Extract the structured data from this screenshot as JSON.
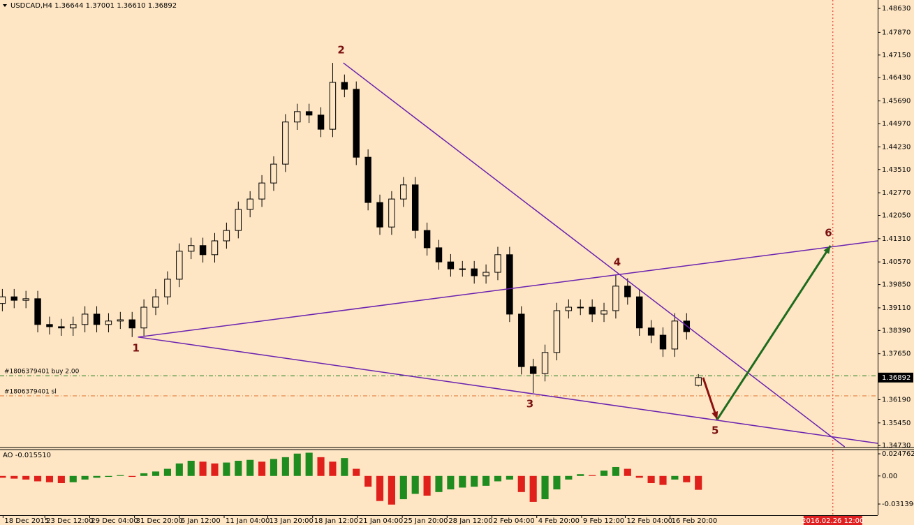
{
  "chart_data": {
    "type": "candlestick",
    "title": "USDCAD,H4  1.36644 1.37001 1.36610 1.36892",
    "candles": [
      [
        1.3925,
        1.3971,
        1.39,
        1.3946
      ],
      [
        1.3946,
        1.3971,
        1.391,
        1.3935
      ],
      [
        1.3935,
        1.3965,
        1.391,
        1.394
      ],
      [
        1.394,
        1.3965,
        1.3833,
        1.3858
      ],
      [
        1.3858,
        1.3883,
        1.3826,
        1.3851
      ],
      [
        1.3851,
        1.3876,
        1.3822,
        1.3847
      ],
      [
        1.3847,
        1.3883,
        1.3822,
        1.3858
      ],
      [
        1.3858,
        1.3916,
        1.3833,
        1.3891
      ],
      [
        1.3891,
        1.3916,
        1.3833,
        1.3858
      ],
      [
        1.3858,
        1.3894,
        1.3833,
        1.3869
      ],
      [
        1.3869,
        1.3898,
        1.3844,
        1.3873
      ],
      [
        1.3873,
        1.3898,
        1.3818,
        1.3847
      ],
      [
        1.3847,
        1.3938,
        1.3822,
        1.3913
      ],
      [
        1.3913,
        1.3971,
        1.3888,
        1.3946
      ],
      [
        1.3946,
        1.4027,
        1.3921,
        1.4002
      ],
      [
        1.4002,
        1.4116,
        1.3977,
        1.4091
      ],
      [
        1.4091,
        1.4134,
        1.4066,
        1.4109
      ],
      [
        1.4109,
        1.4134,
        1.4055,
        1.408
      ],
      [
        1.408,
        1.4149,
        1.4055,
        1.4124
      ],
      [
        1.4124,
        1.4182,
        1.4099,
        1.4157
      ],
      [
        1.4157,
        1.4249,
        1.4132,
        1.4224
      ],
      [
        1.4224,
        1.4282,
        1.4199,
        1.4257
      ],
      [
        1.4257,
        1.4333,
        1.4232,
        1.4308
      ],
      [
        1.4308,
        1.4393,
        1.4283,
        1.4368
      ],
      [
        1.4368,
        1.4527,
        1.4343,
        1.4502
      ],
      [
        1.4502,
        1.456,
        1.4477,
        1.4535
      ],
      [
        1.4535,
        1.456,
        1.4499,
        1.4524
      ],
      [
        1.4524,
        1.4549,
        1.4454,
        1.4479
      ],
      [
        1.4479,
        1.469,
        1.4454,
        1.4628
      ],
      [
        1.4628,
        1.4653,
        1.4581,
        1.4606
      ],
      [
        1.4606,
        1.4631,
        1.4365,
        1.439
      ],
      [
        1.439,
        1.4415,
        1.4221,
        1.4246
      ],
      [
        1.4246,
        1.4271,
        1.4143,
        1.4168
      ],
      [
        1.4168,
        1.4282,
        1.4143,
        1.4257
      ],
      [
        1.4257,
        1.4327,
        1.4232,
        1.4302
      ],
      [
        1.4302,
        1.4327,
        1.4132,
        1.4157
      ],
      [
        1.4157,
        1.4182,
        1.4077,
        1.4102
      ],
      [
        1.4102,
        1.4127,
        1.4032,
        1.4057
      ],
      [
        1.4057,
        1.4082,
        1.401,
        1.4035
      ],
      [
        1.4035,
        1.406,
        1.401,
        1.4035
      ],
      [
        1.4035,
        1.406,
        1.3988,
        1.4013
      ],
      [
        1.4013,
        1.4049,
        1.3988,
        1.4024
      ],
      [
        1.4024,
        1.4105,
        1.3999,
        1.408
      ],
      [
        1.408,
        1.4105,
        1.3866,
        1.3891
      ],
      [
        1.3891,
        1.3916,
        1.3699,
        1.3724
      ],
      [
        1.3724,
        1.3749,
        1.364,
        1.3702
      ],
      [
        1.3702,
        1.3794,
        1.3677,
        1.3769
      ],
      [
        1.3769,
        1.3927,
        1.3744,
        1.3902
      ],
      [
        1.3902,
        1.3938,
        1.3877,
        1.3913
      ],
      [
        1.3913,
        1.3938,
        1.3888,
        1.3913
      ],
      [
        1.3913,
        1.3938,
        1.3866,
        1.3891
      ],
      [
        1.3891,
        1.3927,
        1.3866,
        1.3902
      ],
      [
        1.3902,
        1.4015,
        1.3877,
        1.398
      ],
      [
        1.398,
        1.4005,
        1.3921,
        1.3946
      ],
      [
        1.3946,
        1.3971,
        1.3822,
        1.3847
      ],
      [
        1.3847,
        1.3872,
        1.3799,
        1.3824
      ],
      [
        1.3824,
        1.3849,
        1.3755,
        1.378
      ],
      [
        1.378,
        1.3894,
        1.3755,
        1.3869
      ],
      [
        1.3869,
        1.3894,
        1.381,
        1.3835
      ],
      [
        1.36644,
        1.37001,
        1.3661,
        1.36892
      ]
    ],
    "xlim": [
      -0.2,
      74.2
    ],
    "xticks": [
      {
        "value": 0.06,
        "label": "18 Dec 2015"
      },
      {
        "value": 3.6,
        "label": "23 Dec 12:00"
      },
      {
        "value": 7.4,
        "label": "29 Dec 04:00"
      },
      {
        "value": 11.2,
        "label": "31 Dec 20:00"
      },
      {
        "value": 15.0,
        "label": "6 Jan 12:00"
      },
      {
        "value": 18.8,
        "label": "11 Jan 04:00"
      },
      {
        "value": 22.5,
        "label": "13 Jan 20:00"
      },
      {
        "value": 26.3,
        "label": "18 Jan 12:00"
      },
      {
        "value": 30.1,
        "label": "21 Jan 04:00"
      },
      {
        "value": 33.9,
        "label": "25 Jan 20:00"
      },
      {
        "value": 37.7,
        "label": "28 Jan 12:00"
      },
      {
        "value": 41.5,
        "label": "2 Feb 04:00"
      },
      {
        "value": 45.3,
        "label": "4 Feb 20:00"
      },
      {
        "value": 49.1,
        "label": "9 Feb 12:00"
      },
      {
        "value": 52.8,
        "label": "12 Feb 04:00"
      },
      {
        "value": 56.6,
        "label": "16 Feb 20:00"
      }
    ],
    "ylim": [
      1.3469,
      1.489
    ],
    "yticks": [
      {
        "value": 1.4863,
        "label": "1.48630"
      },
      {
        "value": 1.4787,
        "label": "1.47870"
      },
      {
        "value": 1.4715,
        "label": "1.47150"
      },
      {
        "value": 1.4643,
        "label": "1.46430"
      },
      {
        "value": 1.4569,
        "label": "1.45690"
      },
      {
        "value": 1.4497,
        "label": "1.44970"
      },
      {
        "value": 1.4423,
        "label": "1.44230"
      },
      {
        "value": 1.4351,
        "label": "1.43510"
      },
      {
        "value": 1.4277,
        "label": "1.42770"
      },
      {
        "value": 1.4205,
        "label": "1.42050"
      },
      {
        "value": 1.4131,
        "label": "1.41310"
      },
      {
        "value": 1.4057,
        "label": "1.40570"
      },
      {
        "value": 1.3985,
        "label": "1.39850"
      },
      {
        "value": 1.3911,
        "label": "1.39110"
      },
      {
        "value": 1.3839,
        "label": "1.38390"
      },
      {
        "value": 1.3765,
        "label": "1.37650"
      },
      {
        "value": 1.3619,
        "label": "1.36190"
      },
      {
        "value": 1.3545,
        "label": "1.35450"
      },
      {
        "value": 1.3473,
        "label": "1.34730"
      }
    ],
    "current_price": 1.36892,
    "orders": [
      {
        "label": "#1806379401 buy 2.00",
        "price": 1.3695,
        "color": "#1a7a1a"
      },
      {
        "label": "#1806379401 sl",
        "price": 1.3631,
        "color": "#e0702a"
      }
    ],
    "trendlines": [
      {
        "x": [
          28.9,
          71.4
        ],
        "y": [
          1.469,
          1.3469
        ],
        "color": "#6a22b0"
      },
      {
        "x": [
          11.5,
          74.2
        ],
        "y": [
          1.3818,
          1.4124
        ],
        "color": "#6a22b0"
      },
      {
        "x": [
          11.5,
          74.2
        ],
        "y": [
          1.3818,
          1.348
        ],
        "color": "#6a22b0"
      }
    ],
    "arrows": [
      {
        "x": [
          59.4,
          60.6
        ],
        "y": [
          1.3689,
          1.3556
        ],
        "color": "#8b1010"
      },
      {
        "x": [
          60.6,
          70.2
        ],
        "y": [
          1.3556,
          1.41085
        ],
        "color": "#1e6b1e"
      }
    ],
    "waves": [
      {
        "label": "1",
        "x": 11.5,
        "y": 1.3818,
        "pos": "below"
      },
      {
        "label": "2",
        "x": 28.9,
        "y": 1.469,
        "pos": "above"
      },
      {
        "label": "3",
        "x": 44.9,
        "y": 1.364,
        "pos": "below"
      },
      {
        "label": "4",
        "x": 52.3,
        "y": 1.4015,
        "pos": "above"
      },
      {
        "label": "5",
        "x": 60.6,
        "y": 1.3556,
        "pos": "below"
      },
      {
        "label": "6",
        "x": 70.2,
        "y": 1.41085,
        "pos": "above"
      }
    ],
    "future_marker": {
      "value": 70.4,
      "label": "2016.02.26 12:00"
    },
    "ao": {
      "title": "AO -0.015510",
      "ylim": [
        -0.0439,
        0.0287
      ],
      "yticks": [
        0.024762,
        {
          "value": 0,
          "label": "0.00"
        },
        -0.031396
      ],
      "up_color": "#1e8c1e",
      "down_color": "#e0201a",
      "values": [
        -0.002,
        -0.003,
        -0.004,
        -0.006,
        -0.007,
        -0.008,
        -0.007,
        -0.004,
        -0.002,
        -0.001,
        0.001,
        -0.001,
        0.003,
        0.005,
        0.008,
        0.014,
        0.017,
        0.016,
        0.014,
        0.015,
        0.017,
        0.018,
        0.016,
        0.019,
        0.021,
        0.025,
        0.026,
        0.021,
        0.016,
        0.02,
        0.008,
        -0.012,
        -0.028,
        -0.032,
        -0.026,
        -0.02,
        -0.022,
        -0.018,
        -0.015,
        -0.013,
        -0.012,
        -0.011,
        -0.006,
        -0.004,
        -0.018,
        -0.029,
        -0.026,
        -0.015,
        -0.004,
        0.002,
        0.001,
        0.006,
        0.01,
        0.008,
        -0.002,
        -0.008,
        -0.01,
        -0.004,
        -0.007,
        -0.01551
      ]
    }
  }
}
